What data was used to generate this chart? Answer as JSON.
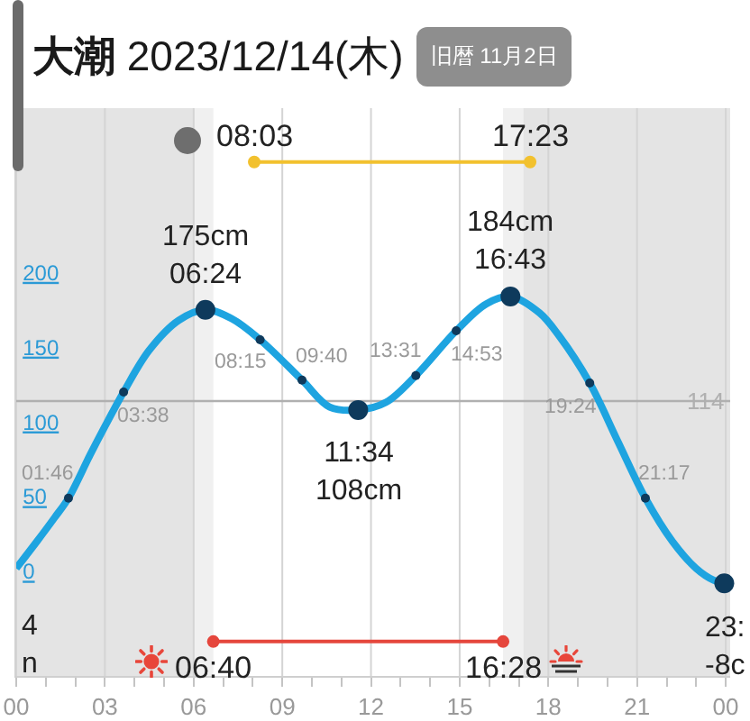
{
  "chart_data": {
    "type": "line",
    "title": "大潮 2023/12/14(木)",
    "subtitle": "旧暦 11月2日",
    "xlim": [
      0,
      24.15
    ],
    "xticks": [
      {
        "value": 0,
        "label": "00"
      },
      {
        "value": 1,
        "label": null
      },
      {
        "value": 2,
        "label": null
      },
      {
        "value": 3,
        "label": "03"
      },
      {
        "value": 4,
        "label": null
      },
      {
        "value": 5,
        "label": null
      },
      {
        "value": 6,
        "label": "06"
      },
      {
        "value": 7,
        "label": null
      },
      {
        "value": 8,
        "label": null
      },
      {
        "value": 9,
        "label": "09"
      },
      {
        "value": 10,
        "label": null
      },
      {
        "value": 11,
        "label": null
      },
      {
        "value": 12,
        "label": "12"
      },
      {
        "value": 13,
        "label": null
      },
      {
        "value": 14,
        "label": null
      },
      {
        "value": 15,
        "label": "15"
      },
      {
        "value": 16,
        "label": null
      },
      {
        "value": 17,
        "label": null
      },
      {
        "value": 18,
        "label": "18"
      },
      {
        "value": 19,
        "label": null
      },
      {
        "value": 20,
        "label": null
      },
      {
        "value": 21,
        "label": "21"
      },
      {
        "value": 22,
        "label": null
      },
      {
        "value": 23,
        "label": null
      },
      {
        "value": 24,
        "label": "00"
      }
    ],
    "ylim": [
      -70,
      310
    ],
    "yticks": [
      0,
      50,
      100,
      150,
      200
    ],
    "grid": "x",
    "series": [
      {
        "type": "line",
        "color": "#1ea4e0",
        "x": [
          0,
          0.7,
          1.3,
          1.767,
          2.5,
          3,
          3.633,
          4.5,
          5.5,
          6.4,
          7.3,
          8.25,
          9.667,
          10.6,
          11.567,
          12.5,
          13.517,
          14.883,
          15.9,
          16.717,
          17.7,
          18.35,
          19.4,
          20.35,
          21.283,
          22.2,
          23,
          23.6,
          23.95
        ],
        "values": [
          2,
          20,
          36,
          49,
          78,
          97,
          120,
          148,
          168,
          175,
          169,
          155,
          128,
          110,
          108,
          113,
          131,
          161,
          179,
          184,
          173,
          158,
          126,
          87,
          49,
          20,
          2,
          -6,
          -8
        ]
      },
      {
        "type": "scatter",
        "color": "#0e3a5c",
        "marker": "circle",
        "x": [
          6.4,
          11.567,
          16.717,
          23.95
        ],
        "values": [
          175,
          108,
          184,
          -8
        ],
        "value_labels": [
          "175cm\n06:24",
          "11:34\n108cm",
          "184cm\n16:43",
          "23:\n-8c"
        ]
      },
      {
        "type": "scatter",
        "color": "#0e3a5c",
        "marker": "circle",
        "x": [
          1.767,
          3.633,
          8.25,
          9.667,
          13.517,
          14.883,
          19.4,
          21.283
        ],
        "values": [
          49,
          120,
          155,
          128,
          131,
          161,
          126,
          49
        ]
      },
      {
        "type": "line",
        "color": "#f2c12e",
        "marker": "circle",
        "x": [
          8.05,
          17.383
        ],
        "values": [
          274,
          274
        ]
      },
      {
        "type": "line",
        "color": "#e5463c",
        "marker": "circle",
        "x": [
          6.667,
          16.467
        ],
        "values": [
          -47,
          -47
        ]
      }
    ],
    "ref_lines": [
      {
        "axis": "y",
        "value": 114,
        "label": "114",
        "color": "#b0b0b0"
      }
    ],
    "bands": [
      {
        "axis": "x",
        "from": 0,
        "to": 6,
        "color": "#e4e4e4"
      },
      {
        "axis": "x",
        "from": 6,
        "to": 6.667,
        "color": "#f0f0f0"
      },
      {
        "axis": "x",
        "from": 16.467,
        "to": 17.15,
        "color": "#f0f0f0"
      },
      {
        "axis": "x",
        "from": 17.15,
        "to": 24.15,
        "color": "#e4e4e4"
      }
    ],
    "annotations": [
      {
        "text": "01:46",
        "x": 1.767,
        "y": 49
      },
      {
        "text": "03:38",
        "x": 3.633,
        "y": 120
      },
      {
        "text": "08:15",
        "x": 8.25,
        "y": 155
      },
      {
        "text": "09:40",
        "x": 9.667,
        "y": 128
      },
      {
        "text": "13:31",
        "x": 13.517,
        "y": 131
      },
      {
        "text": "14:53",
        "x": 14.883,
        "y": 161
      },
      {
        "text": "19:24",
        "x": 19.4,
        "y": 126
      },
      {
        "text": "21:17",
        "x": 21.283,
        "y": 49
      },
      {
        "text": "08:03",
        "x": 8.05,
        "y": 274
      },
      {
        "text": "17:23",
        "x": 17.383,
        "y": 274
      },
      {
        "text": "06:40",
        "x": 6.667,
        "y": -47
      },
      {
        "text": "16:28",
        "x": 16.467,
        "y": -47
      },
      "4\nn"
    ]
  }
}
